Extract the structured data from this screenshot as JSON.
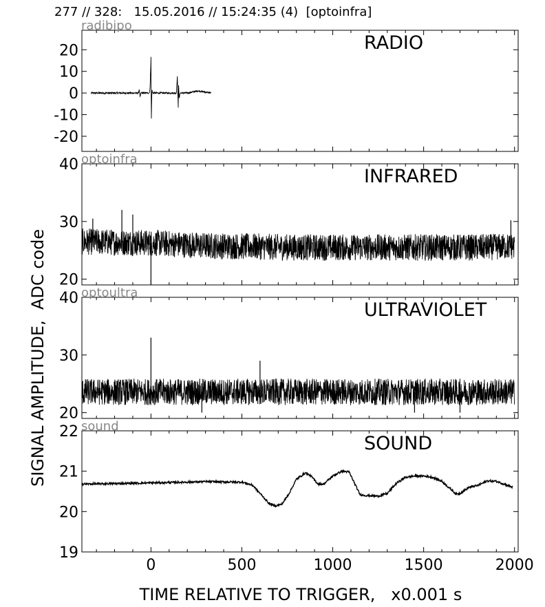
{
  "header": "277 // 328:   15.05.2016 // 15:24:35 (4)  [optoinfra]",
  "chart_data": [
    {
      "type": "line",
      "channel_tag": "radibipo",
      "title": "RADIO",
      "xlim": [
        -380,
        2020
      ],
      "ylim": [
        -27,
        29
      ],
      "yticks": [
        -20,
        -10,
        0,
        10,
        20
      ],
      "yticklabels": [
        "-20",
        "-10",
        "0",
        "10",
        "20"
      ],
      "series": [
        {
          "x": [
            -330,
            -200,
            -70,
            -65,
            -60,
            -55,
            -10,
            -5,
            0,
            2,
            5,
            10,
            50,
            140,
            145,
            150,
            152,
            155,
            160,
            200,
            260,
            330
          ],
          "y": [
            0,
            0,
            0,
            1.5,
            -2,
            0,
            0,
            2,
            16.5,
            -14,
            1.5,
            0,
            0,
            0,
            8,
            -7,
            5,
            -3,
            0,
            0,
            1,
            0
          ],
          "noise": 0.4
        }
      ]
    },
    {
      "type": "line",
      "channel_tag": "optoinfra",
      "title": "INFRARED",
      "xlim": [
        -380,
        2020
      ],
      "ylim": [
        19,
        40
      ],
      "yticks": [
        20,
        30,
        40
      ],
      "yticklabels": [
        "20",
        "30",
        "40"
      ],
      "series": [
        {
          "x": [
            -380,
            0,
            300,
            800,
            1300,
            1800,
            2000
          ],
          "y": [
            26.5,
            26.3,
            25.8,
            25.5,
            25.5,
            25.5,
            25.7
          ],
          "noise": 2.3,
          "spikes": [
            {
              "x": 0,
              "y": 19
            },
            {
              "x": -320,
              "y": 30.5
            },
            {
              "x": -160,
              "y": 32
            },
            {
              "x": -100,
              "y": 31.2
            },
            {
              "x": 1980,
              "y": 30.2
            }
          ]
        }
      ]
    },
    {
      "type": "line",
      "channel_tag": "optoultra",
      "title": "ULTRAVIOLET",
      "xlim": [
        -380,
        2020
      ],
      "ylim": [
        19,
        40
      ],
      "yticks": [
        20,
        30,
        40
      ],
      "yticklabels": [
        "20",
        "30",
        "40"
      ],
      "series": [
        {
          "x": [
            -380,
            0,
            1000,
            2000
          ],
          "y": [
            23.6,
            23.6,
            23.6,
            23.6
          ],
          "noise": 2.3,
          "spikes": [
            {
              "x": 0,
              "y": 33
            },
            {
              "x": 280,
              "y": 20
            },
            {
              "x": 1450,
              "y": 20
            },
            {
              "x": 1700,
              "y": 20
            },
            {
              "x": 600,
              "y": 29
            }
          ]
        }
      ]
    },
    {
      "type": "line",
      "channel_tag": "sound",
      "title": "SOUND",
      "xlim": [
        -380,
        2020
      ],
      "ylim": [
        19,
        22
      ],
      "yticks": [
        19,
        20,
        21,
        22
      ],
      "yticklabels": [
        "19",
        "20",
        "21",
        "22"
      ],
      "series": [
        {
          "x": [
            -380,
            -100,
            100,
            300,
            500,
            560,
            600,
            650,
            680,
            720,
            760,
            800,
            850,
            880,
            920,
            950,
            1000,
            1050,
            1090,
            1120,
            1150,
            1180,
            1250,
            1300,
            1350,
            1400,
            1450,
            1500,
            1550,
            1600,
            1650,
            1680,
            1700,
            1750,
            1800,
            1850,
            1900,
            1950,
            1990
          ],
          "y": [
            20.68,
            20.7,
            20.72,
            20.74,
            20.73,
            20.65,
            20.45,
            20.2,
            20.14,
            20.18,
            20.45,
            20.8,
            20.96,
            20.88,
            20.68,
            20.68,
            20.88,
            21.0,
            20.98,
            20.7,
            20.42,
            20.4,
            20.38,
            20.45,
            20.7,
            20.85,
            20.88,
            20.88,
            20.85,
            20.75,
            20.55,
            20.43,
            20.45,
            20.6,
            20.65,
            20.76,
            20.75,
            20.67,
            20.6
          ],
          "noise": 0.025
        }
      ]
    }
  ],
  "xaxis": {
    "ticks": [
      0,
      500,
      1000,
      1500,
      2000
    ],
    "ticklabels": [
      "0",
      "500",
      "1000",
      "1500",
      "2000"
    ],
    "label": "TIME RELATIVE TO TRIGGER,   x0.001 s"
  },
  "ylabel": "SIGNAL AMPLITUDE,  ADC code"
}
